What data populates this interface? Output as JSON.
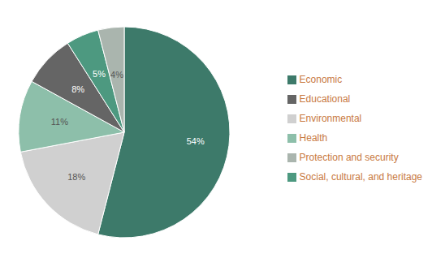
{
  "chart_data": {
    "type": "pie",
    "categories": [
      "Economic",
      "Environmental",
      "Health",
      "Educational",
      "Social, cultural, and heritage",
      "Protection and security"
    ],
    "values": [
      54,
      18,
      11,
      8,
      5,
      4
    ],
    "value_labels": [
      "54%",
      "18%",
      "11%",
      "8%",
      "5%",
      "4%"
    ],
    "colors": [
      "#3d7a6a",
      "#d0d0d0",
      "#8dbfaa",
      "#656565",
      "#4d9980",
      "#aab5ae"
    ],
    "data_labels": true,
    "legend": "right"
  }
}
